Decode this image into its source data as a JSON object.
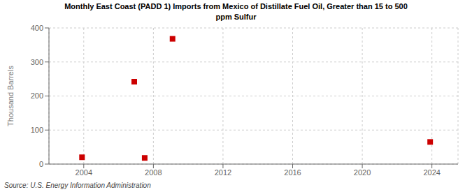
{
  "chart_data": {
    "type": "scatter",
    "title": "Monthly East Coast (PADD 1) Imports from Mexico of Distillate Fuel Oil, Greater than 15 to 500\nppm Sulfur",
    "y_label": "Thousand Barrels",
    "annotations": [
      "Source: U.S. Energy Information Administration"
    ],
    "x": [
      2003.9,
      2006.9,
      2007.5,
      2009.1,
      2023.9
    ],
    "values": [
      20,
      242,
      18,
      368,
      65
    ],
    "color": "#cc0000",
    "marker": "square",
    "xlim": [
      2002.0,
      2025.5
    ],
    "ylim": [
      0,
      400
    ],
    "xticks": [
      2004,
      2008,
      2012,
      2016,
      2020,
      2024
    ],
    "yticks": [
      0,
      100,
      200,
      300,
      400
    ],
    "grid": true
  }
}
